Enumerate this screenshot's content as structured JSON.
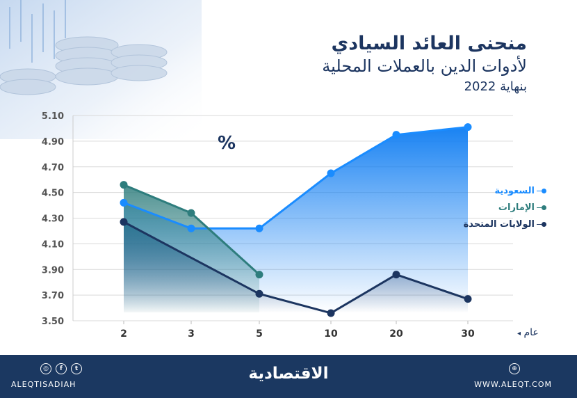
{
  "header": {
    "title": "منحنى العائد السيادي",
    "subtitle": "لأدوات الدين بالعملات المحلية",
    "date_line": "بنهاية 2022"
  },
  "chart_data": {
    "type": "area",
    "unit_label": "%",
    "x_unit_label": "عام",
    "categories": [
      "2",
      "3",
      "5",
      "10",
      "20",
      "30"
    ],
    "y_ticks": [
      "5.10",
      "4.90",
      "4.70",
      "4.50",
      "4.30",
      "4.10",
      "3.90",
      "3.70",
      "3.50"
    ],
    "ylim": [
      3.5,
      5.1
    ],
    "grid": true,
    "legend_position": "right",
    "series": [
      {
        "name": "السعودية",
        "color": "#1a8cff",
        "values": [
          4.42,
          4.22,
          4.22,
          4.65,
          4.95,
          5.01
        ]
      },
      {
        "name": "الإمارات",
        "color": "#2e7d7d",
        "values": [
          4.56,
          4.34,
          3.86,
          null,
          null,
          null
        ]
      },
      {
        "name": "الولايات المتحدة",
        "color": "#1c3560",
        "values": [
          4.27,
          null,
          3.71,
          3.56,
          3.86,
          3.67
        ]
      }
    ]
  },
  "footer": {
    "handle": "ALEQTISADIAH",
    "brand": "الاقتصادية",
    "website": "WWW.ALEQT.COM",
    "icons": [
      "instagram-icon",
      "facebook-icon",
      "twitter-icon",
      "globe-icon"
    ]
  }
}
